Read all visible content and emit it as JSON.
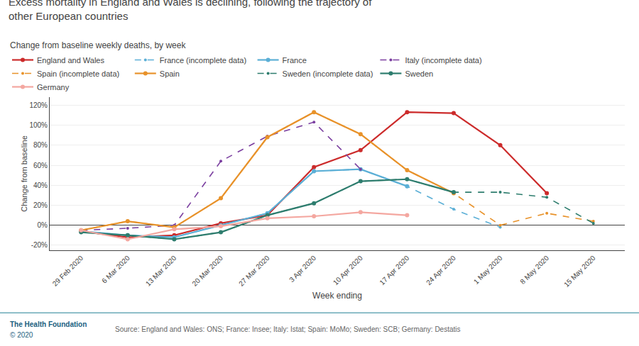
{
  "chart_data": {
    "type": "line",
    "title": "Excess mortality in England and Wales is declining, following the trajectory of\nother European countries",
    "subtitle": "Change from baseline weekly deaths, by week",
    "x_label": "Week ending",
    "y_label": "Change from baseline",
    "categories": [
      "29 Feb 2020",
      "6 Mar 2020",
      "13 Mar 2020",
      "20 Mar 2020",
      "27 Mar 2020",
      "3 Apr 2020",
      "10 Apr 2020",
      "17 Apr 2020",
      "24 Apr 2020",
      "1 May 2020",
      "8 May 2020",
      "15 May 2020"
    ],
    "series": [
      {
        "name": "England and Wales",
        "color": "#cc2b2b",
        "line_style": "solid",
        "marker": "circle",
        "values": [
          -0.06,
          -0.12,
          -0.1,
          0.02,
          0.1,
          0.58,
          0.75,
          1.13,
          1.12,
          0.8,
          0.32,
          null
        ]
      },
      {
        "name": "France (incomplete data)",
        "color": "#5bafd6",
        "line_style": "dashed",
        "marker": "circle",
        "values": [
          -0.06,
          -0.1,
          -0.12,
          0.0,
          0.12,
          0.54,
          0.56,
          0.39,
          0.16,
          -0.02,
          null,
          null
        ]
      },
      {
        "name": "France",
        "color": "#5bafd6",
        "line_style": "solid",
        "marker": "circle",
        "values": [
          -0.06,
          -0.1,
          -0.12,
          0.0,
          0.12,
          0.54,
          0.56,
          0.39,
          null,
          null,
          null,
          null
        ]
      },
      {
        "name": "Italy (incomplete data)",
        "color": "#7b3fa0",
        "line_style": "dashed",
        "marker": "circle",
        "values": [
          -0.05,
          -0.03,
          0.0,
          0.64,
          0.89,
          1.03,
          0.56,
          null,
          null,
          null,
          null,
          null
        ]
      },
      {
        "name": "Spain (incomplete data)",
        "color": "#e8922a",
        "line_style": "dashed",
        "marker": "circle",
        "values": [
          -0.05,
          0.04,
          -0.02,
          0.27,
          0.88,
          1.13,
          0.91,
          0.55,
          0.32,
          0.0,
          0.12,
          0.04
        ]
      },
      {
        "name": "Spain",
        "color": "#e8922a",
        "line_style": "solid",
        "marker": "circle",
        "values": [
          -0.05,
          0.04,
          -0.02,
          0.27,
          0.88,
          1.13,
          0.91,
          0.55,
          0.32,
          null,
          null,
          null
        ]
      },
      {
        "name": "Sweden (incomplete data)",
        "color": "#2e7d6e",
        "line_style": "dashed",
        "marker": "circle",
        "values": [
          -0.07,
          -0.1,
          -0.14,
          -0.07,
          0.1,
          0.22,
          0.44,
          0.46,
          0.33,
          0.33,
          0.28,
          0.02
        ]
      },
      {
        "name": "Sweden",
        "color": "#2e7d6e",
        "line_style": "solid",
        "marker": "circle",
        "values": [
          -0.07,
          -0.1,
          -0.14,
          -0.07,
          0.1,
          0.22,
          0.44,
          0.46,
          0.33,
          null,
          null,
          null
        ]
      },
      {
        "name": "Germany",
        "color": "#f4a7a0",
        "line_style": "solid",
        "marker": "circle",
        "values": [
          -0.05,
          -0.14,
          -0.04,
          -0.01,
          0.07,
          0.09,
          0.13,
          0.1,
          null,
          null,
          null,
          null
        ]
      }
    ],
    "ylim": [
      -0.25,
      1.28
    ],
    "yticks": [
      {
        "value": -0.2,
        "label": "-20%"
      },
      {
        "value": 0.0,
        "label": "0%"
      },
      {
        "value": 0.2,
        "label": "20%"
      },
      {
        "value": 0.4,
        "label": "40%"
      },
      {
        "value": 0.6,
        "label": "60%"
      },
      {
        "value": 0.8,
        "label": "80%"
      },
      {
        "value": 1.0,
        "label": "100%"
      },
      {
        "value": 1.2,
        "label": "120%"
      }
    ],
    "grid": true,
    "legend": "upper left",
    "annotations": [
      "The Health Foundation",
      "© 2020",
      "Source: England and Wales: ONS; France: Insee; Italy: Istat; Spain: MoMo; Sweden: SCB; Germany: Destatis"
    ]
  }
}
